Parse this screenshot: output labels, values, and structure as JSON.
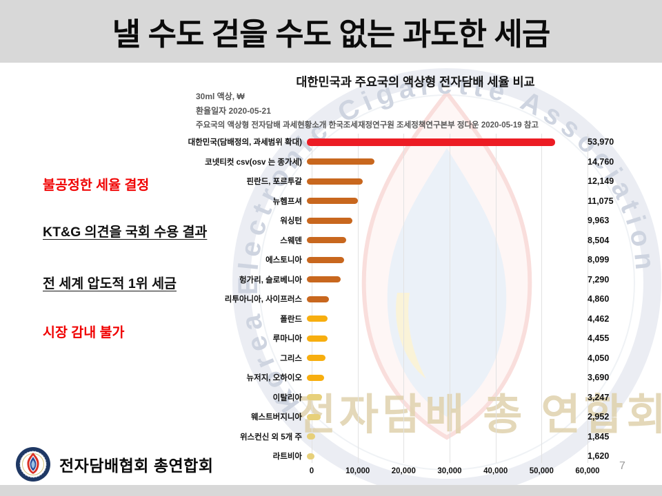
{
  "slide": {
    "title": "낼 수도 걷을 수도 없는 과도한 세금",
    "page_number": "7"
  },
  "callouts": [
    {
      "text": "불공정한 세율 결정",
      "color": "#f00000",
      "underline": false
    },
    {
      "text": "KT&G 의견을 국회 수용 결과",
      "color": "#111111",
      "underline": true
    },
    {
      "text": "전 세계 압도적 1위 세금",
      "color": "#111111",
      "underline": true
    },
    {
      "text": "시장 감내 불가",
      "color": "#f00000",
      "underline": false
    }
  ],
  "footer": {
    "org_name": "전자담배협회 총연합회",
    "logo": "association-seal-icon"
  },
  "watermark": {
    "ring_text": "Korea Electronic Cigarette Association",
    "korean_text": "전자담배 총 연합회"
  },
  "chart_data": {
    "type": "bar",
    "orientation": "horizontal",
    "title": "대한민국과 주요국의 액상형 전자담배 세율 비교",
    "notes": [
      "30ml 액상, ₩",
      "환율일자 2020-05-21",
      "주요국의 액상형 전자담배 과세현황소개 한국조세재정연구원 조세정책연구본부 정다운 2020-05-19 참고"
    ],
    "categories": [
      "대한민국(담배정의, 과세범위 확대)",
      "코넷티컷 csv(osv 는 종가세)",
      "핀란드, 포르투갈",
      "뉴헴프셔",
      "워싱턴",
      "스웨덴",
      "에스토니아",
      "헝가리, 슬로베니아",
      "리투아니아, 사이프러스",
      "폴란드",
      "루마니아",
      "그리스",
      "뉴저지, 오하이오",
      "이탈리아",
      "웨스트버지니아",
      "위스컨신 외 5개 주",
      "라트비아"
    ],
    "values": [
      53970,
      14760,
      12149,
      11075,
      9963,
      8504,
      8099,
      7290,
      4860,
      4462,
      4455,
      4050,
      3690,
      3247,
      2952,
      1845,
      1620
    ],
    "bar_colors": [
      "#ec1c24",
      "#c8671e",
      "#c8671e",
      "#c8671e",
      "#c8671e",
      "#c8671e",
      "#c8671e",
      "#c8671e",
      "#c8671e",
      "#f7ae0f",
      "#f7ae0f",
      "#f7ae0f",
      "#f7ae0f",
      "#e7d07a",
      "#e7d07a",
      "#e7d07a",
      "#e7d07a"
    ],
    "xlim": [
      0,
      60000
    ],
    "x_ticks": [
      0,
      10000,
      20000,
      30000,
      40000,
      50000,
      60000
    ],
    "grid": true,
    "legend": false
  }
}
